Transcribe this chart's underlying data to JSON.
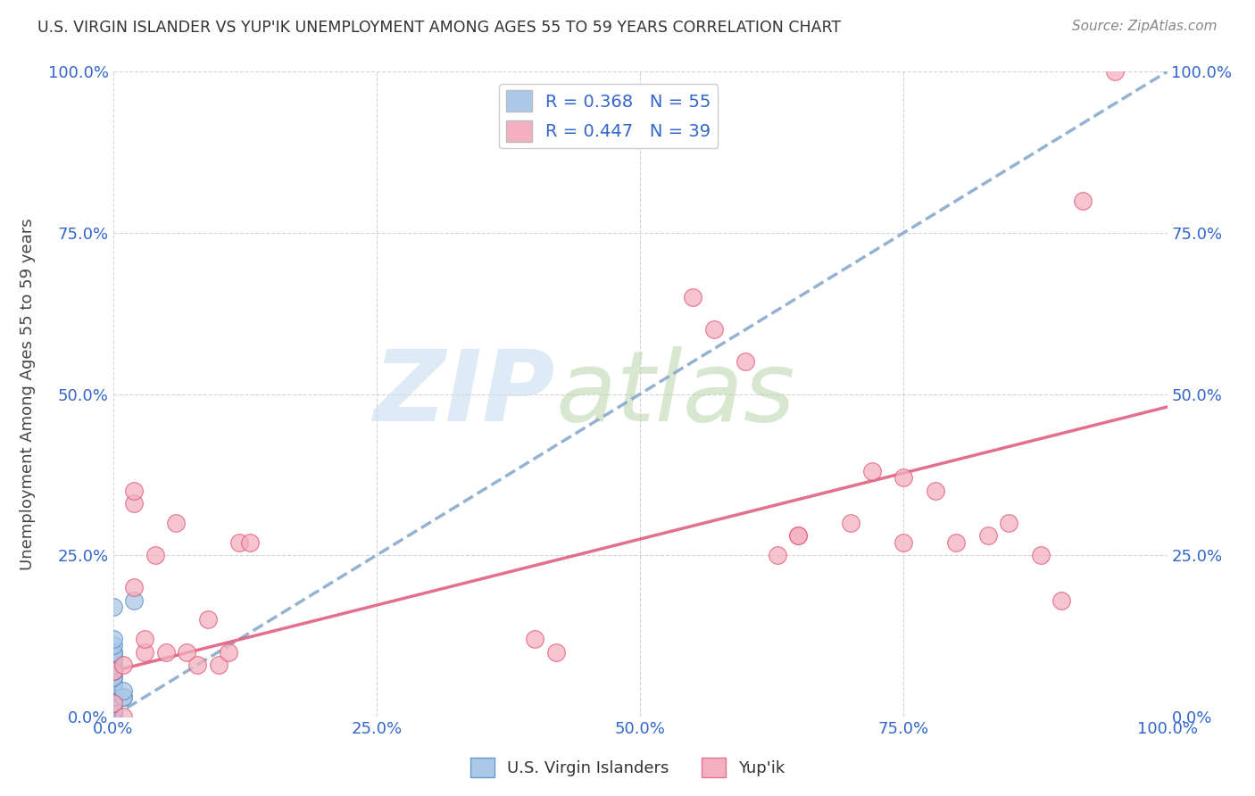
{
  "title": "U.S. VIRGIN ISLANDER VS YUP'IK UNEMPLOYMENT AMONG AGES 55 TO 59 YEARS CORRELATION CHART",
  "source": "Source: ZipAtlas.com",
  "ylabel": "Unemployment Among Ages 55 to 59 years",
  "xlim": [
    0.0,
    1.0
  ],
  "ylim": [
    0.0,
    1.0
  ],
  "xticks": [
    0.0,
    0.25,
    0.5,
    0.75,
    1.0
  ],
  "yticks": [
    0.0,
    0.25,
    0.5,
    0.75,
    1.0
  ],
  "xticklabels": [
    "0.0%",
    "25.0%",
    "50.0%",
    "75.0%",
    "100.0%"
  ],
  "yticklabels": [
    "0.0%",
    "25.0%",
    "50.0%",
    "75.0%",
    "100.0%"
  ],
  "background_color": "#ffffff",
  "grid_color": "#d0d0d0",
  "legend_entries": [
    {
      "label": "R = 0.368   N = 55",
      "facecolor": "#aac8e8",
      "edgecolor": "#aac8e8"
    },
    {
      "label": "R = 0.447   N = 39",
      "facecolor": "#f4b0c0",
      "edgecolor": "#f4b0c0"
    }
  ],
  "bottom_legend": [
    {
      "label": "U.S. Virgin Islanders",
      "facecolor": "#aac8e8",
      "edgecolor": "#6699cc"
    },
    {
      "label": "Yup'ik",
      "facecolor": "#f4b0c0",
      "edgecolor": "#e87090"
    }
  ],
  "series": [
    {
      "name": "U.S. Virgin Islanders",
      "scatter_color": "#aac8e8",
      "scatter_edge": "#5588bb",
      "trend_color": "#88aacc",
      "trend_style": "--",
      "trend_x": [
        0.0,
        1.0
      ],
      "trend_y": [
        0.0,
        1.0
      ],
      "points_x": [
        0.0,
        0.0,
        0.0,
        0.0,
        0.0,
        0.0,
        0.0,
        0.0,
        0.0,
        0.0,
        0.0,
        0.0,
        0.0,
        0.0,
        0.0,
        0.0,
        0.0,
        0.0,
        0.0,
        0.0,
        0.0,
        0.0,
        0.0,
        0.0,
        0.0,
        0.0,
        0.0,
        0.0,
        0.0,
        0.0,
        0.0,
        0.0,
        0.0,
        0.0,
        0.0,
        0.0,
        0.0,
        0.0,
        0.0,
        0.0,
        0.0,
        0.0,
        0.0,
        0.0,
        0.0,
        0.0,
        0.0,
        0.0,
        0.0,
        0.0,
        0.01,
        0.01,
        0.01,
        0.02,
        0.0
      ],
      "points_y": [
        0.0,
        0.0,
        0.0,
        0.0,
        0.0,
        0.0,
        0.0,
        0.0,
        0.0,
        0.0,
        0.0,
        0.0,
        0.0,
        0.0,
        0.0,
        0.0,
        0.0,
        0.0,
        0.0,
        0.0,
        0.01,
        0.01,
        0.01,
        0.01,
        0.01,
        0.01,
        0.01,
        0.02,
        0.02,
        0.03,
        0.03,
        0.03,
        0.04,
        0.04,
        0.04,
        0.05,
        0.05,
        0.05,
        0.06,
        0.06,
        0.07,
        0.07,
        0.08,
        0.08,
        0.09,
        0.09,
        0.1,
        0.1,
        0.11,
        0.12,
        0.03,
        0.03,
        0.04,
        0.18,
        0.17
      ]
    },
    {
      "name": "Yup'ik",
      "scatter_color": "#f4b0c0",
      "scatter_edge": "#e05070",
      "trend_color": "#e06080",
      "trend_style": "-",
      "trend_x": [
        0.0,
        1.0
      ],
      "trend_y": [
        0.07,
        0.48
      ],
      "points_x": [
        0.0,
        0.0,
        0.01,
        0.01,
        0.02,
        0.02,
        0.02,
        0.03,
        0.03,
        0.04,
        0.05,
        0.06,
        0.07,
        0.08,
        0.09,
        0.1,
        0.11,
        0.12,
        0.13,
        0.4,
        0.42,
        0.55,
        0.57,
        0.6,
        0.63,
        0.65,
        0.65,
        0.7,
        0.72,
        0.75,
        0.75,
        0.78,
        0.8,
        0.83,
        0.85,
        0.88,
        0.9,
        0.92,
        0.95
      ],
      "points_y": [
        0.02,
        0.07,
        0.0,
        0.08,
        0.2,
        0.33,
        0.35,
        0.1,
        0.12,
        0.25,
        0.1,
        0.3,
        0.1,
        0.08,
        0.15,
        0.08,
        0.1,
        0.27,
        0.27,
        0.12,
        0.1,
        0.65,
        0.6,
        0.55,
        0.25,
        0.28,
        0.28,
        0.3,
        0.38,
        0.37,
        0.27,
        0.35,
        0.27,
        0.28,
        0.3,
        0.25,
        0.18,
        0.8,
        1.0
      ]
    }
  ]
}
